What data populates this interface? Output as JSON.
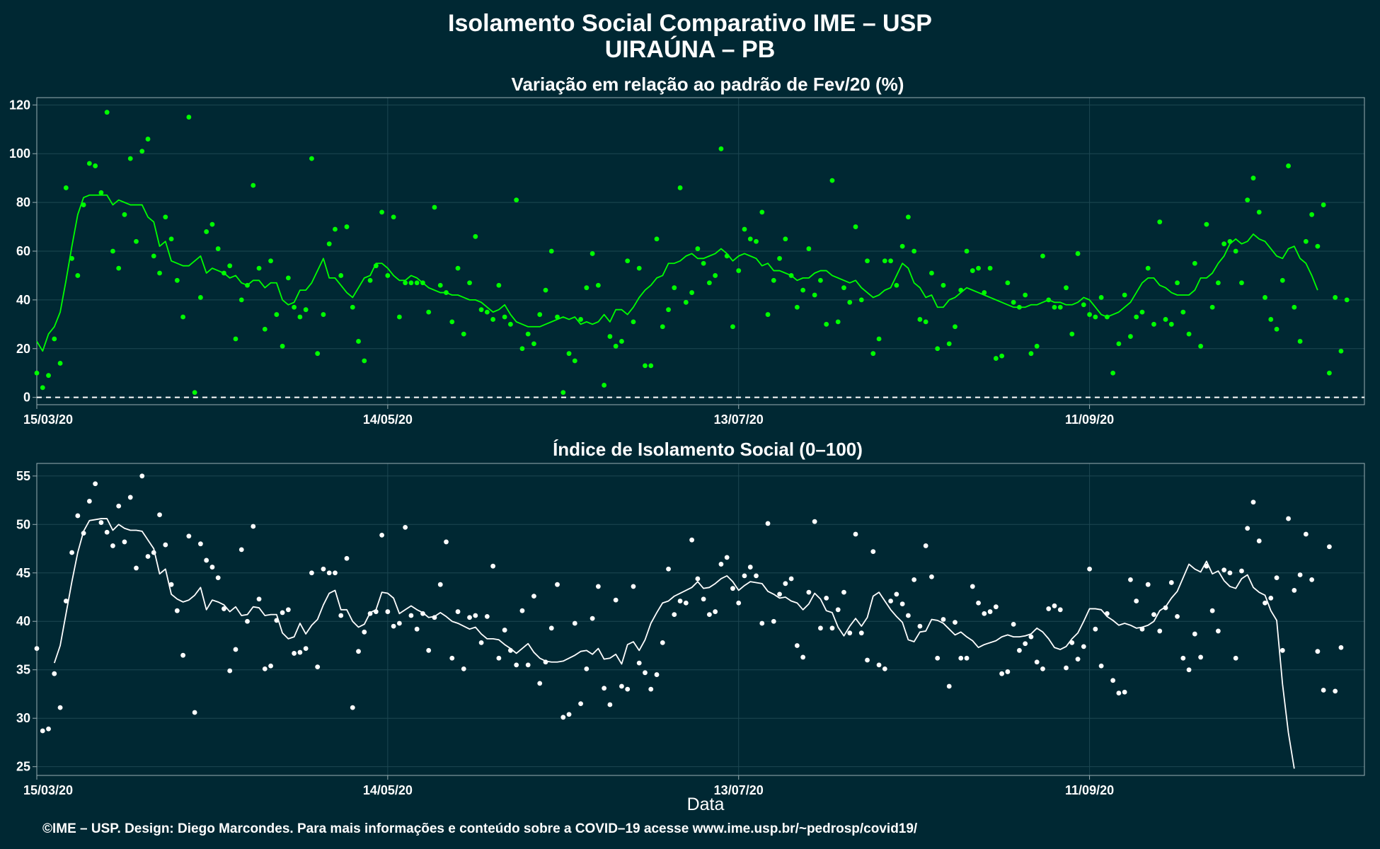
{
  "title": "Isolamento Social Comparativo IME – USP",
  "subtitle": "UIRAÚNA – PB",
  "xlabel": "Data",
  "footer": "©IME – USP. Design: Diego Marcondes. Para mais informações e conteúdo sobre a COVID–19 acesse www.ime.usp.br/~pedrosp/covid19/",
  "colors": {
    "background": "#002833",
    "grid": "#1d4752",
    "frame": "#9aaeb3",
    "series1": "#00ff00",
    "series2": "#ffffff"
  },
  "chart_data": [
    {
      "type": "scatter",
      "title": "Variação em relação ao padrão de Fev/20 (%)",
      "x_start": "15/03/20",
      "x_ticks": [
        {
          "label": "15/03/20",
          "day": 0
        },
        {
          "label": "14/05/20",
          "day": 60
        },
        {
          "label": "13/07/20",
          "day": 120
        },
        {
          "label": "11/09/20",
          "day": 180
        }
      ],
      "xlim_days": [
        0,
        227
      ],
      "ylim": [
        -3,
        123
      ],
      "y_ticks": [
        0,
        20,
        40,
        60,
        80,
        100,
        120
      ],
      "reference_line": 0,
      "grid": true,
      "points": [
        10,
        4,
        9,
        24,
        14,
        86,
        57,
        50,
        79,
        96,
        95,
        84,
        117,
        60,
        53,
        75,
        98,
        64,
        101,
        106,
        58,
        51,
        74,
        65,
        48,
        33,
        115,
        2,
        41,
        68,
        71,
        61,
        51,
        54,
        24,
        40,
        46,
        87,
        53,
        28,
        56,
        34,
        21,
        49,
        37,
        33,
        36,
        98,
        18,
        34,
        63,
        69,
        50,
        70,
        37,
        23,
        15,
        48,
        54,
        76,
        50,
        74,
        33,
        47,
        47,
        47,
        47,
        35,
        78,
        46,
        43,
        31,
        53,
        26,
        47,
        66,
        36,
        35,
        32,
        46,
        33,
        30,
        81,
        20,
        26,
        22,
        34,
        44,
        60,
        33,
        2,
        18,
        15,
        32,
        45,
        59,
        46,
        5,
        25,
        21,
        23,
        56,
        31,
        53,
        13,
        13,
        65,
        29,
        36,
        45,
        86,
        39,
        43,
        61,
        55,
        47,
        50,
        102,
        58,
        29,
        52,
        69,
        65,
        64,
        76,
        34,
        48,
        57,
        65,
        50,
        37,
        44,
        61,
        42,
        48,
        30,
        89,
        31,
        45,
        39,
        70,
        40,
        56,
        18,
        24,
        56,
        56,
        46,
        62,
        74,
        60,
        32,
        31,
        51,
        20,
        46,
        22,
        29,
        44,
        60,
        52,
        53,
        43,
        53,
        16,
        17,
        47,
        39,
        37,
        42,
        18,
        21,
        58,
        40,
        37,
        37,
        45,
        26,
        59,
        38,
        34,
        33,
        41,
        33,
        10,
        22,
        42,
        25,
        33,
        35,
        53,
        30,
        72,
        32,
        30,
        47,
        35,
        26,
        55,
        21,
        71,
        37,
        47,
        63,
        64,
        60,
        47,
        81,
        90,
        76,
        41,
        32,
        28,
        48,
        95,
        37,
        23,
        64,
        75,
        62,
        79,
        10,
        41,
        19,
        40
      ],
      "moving_average": [
        23,
        19,
        26,
        29,
        35,
        48,
        62,
        75,
        82,
        83,
        83,
        83,
        83,
        79,
        81,
        80,
        79,
        79,
        79,
        74,
        72,
        62,
        64,
        56,
        55,
        54,
        54,
        56,
        58,
        51,
        53,
        52,
        51,
        49,
        50,
        47,
        46,
        48,
        48,
        45,
        47,
        47,
        40,
        38,
        39,
        44,
        44,
        47,
        52,
        57,
        49,
        49,
        46,
        43,
        41,
        45,
        49,
        50,
        55,
        55,
        53,
        50,
        48,
        48,
        50,
        49,
        47,
        45,
        44,
        43,
        43,
        42,
        42,
        41,
        40,
        40,
        39,
        37,
        35,
        36,
        38,
        34,
        31,
        30,
        29,
        29,
        29,
        30,
        31,
        32,
        33,
        32,
        33,
        30,
        31,
        30,
        31,
        34,
        31,
        36,
        36,
        34,
        37,
        41,
        44,
        46,
        49,
        50,
        55,
        55,
        56,
        58,
        59,
        57,
        57,
        58,
        59,
        61,
        59,
        56,
        58,
        59,
        58,
        57,
        54,
        55,
        52,
        52,
        51,
        50,
        48,
        49,
        49,
        51,
        52,
        52,
        50,
        49,
        48,
        47,
        48,
        45,
        43,
        41,
        42,
        44,
        45,
        50,
        55,
        53,
        47,
        45,
        41,
        42,
        37,
        37,
        40,
        41,
        43,
        45,
        44,
        43,
        42,
        41,
        40,
        39,
        38,
        37,
        37,
        37,
        38,
        38,
        39,
        40,
        39,
        39,
        38,
        38,
        39,
        41,
        40,
        37,
        34,
        33,
        34,
        35,
        37,
        39,
        43,
        47,
        49,
        49,
        46,
        45,
        43,
        42,
        42,
        42,
        44,
        49,
        49,
        51,
        55,
        58,
        63,
        65,
        63,
        64,
        67,
        65,
        64,
        61,
        58,
        57,
        61,
        62,
        57,
        55,
        50,
        44
      ]
    },
    {
      "type": "scatter",
      "title": "Índice de Isolamento Social (0–100)",
      "x_start": "15/03/20",
      "x_ticks": [
        {
          "label": "15/03/20",
          "day": 0
        },
        {
          "label": "14/05/20",
          "day": 60
        },
        {
          "label": "13/07/20",
          "day": 120
        },
        {
          "label": "11/09/20",
          "day": 180
        }
      ],
      "xlim_days": [
        0,
        227
      ],
      "ylim": [
        24.1,
        56.3
      ],
      "y_ticks": [
        25,
        30,
        35,
        40,
        45,
        50,
        55
      ],
      "grid": true,
      "points": [
        37.2,
        28.7,
        28.9,
        34.6,
        31.1,
        42.1,
        47.1,
        50.9,
        49.1,
        52.4,
        54.2,
        50.2,
        49.2,
        47.8,
        51.9,
        48.2,
        52.8,
        45.5,
        55.0,
        46.7,
        47.1,
        51.0,
        47.9,
        43.8,
        41.1,
        36.5,
        48.8,
        30.6,
        48.0,
        46.3,
        45.6,
        44.5,
        41.3,
        34.9,
        37.1,
        47.4,
        40.0,
        49.8,
        42.3,
        35.1,
        35.4,
        40.1,
        40.9,
        41.2,
        36.7,
        36.8,
        37.2,
        45.0,
        35.3,
        45.4,
        45.0,
        45.0,
        40.6,
        46.5,
        31.1,
        36.9,
        38.9,
        40.8,
        41.0,
        48.9,
        41.0,
        39.5,
        39.8,
        49.7,
        40.6,
        39.2,
        40.8,
        37.0,
        40.4,
        43.8,
        48.2,
        36.2,
        41.0,
        35.1,
        40.4,
        40.6,
        37.8,
        40.5,
        45.7,
        36.2,
        39.1,
        37.0,
        35.5,
        41.1,
        35.5,
        42.6,
        33.6,
        35.8,
        39.3,
        43.8,
        30.1,
        30.4,
        39.8,
        31.5,
        35.1,
        40.3,
        43.6,
        33.1,
        31.4,
        42.2,
        33.3,
        33.0,
        43.6,
        35.7,
        34.7,
        33.0,
        34.5,
        37.8,
        45.4,
        40.7,
        42.1,
        41.9,
        48.4,
        44.4,
        42.3,
        40.7,
        41.0,
        45.9,
        46.6,
        43.4,
        41.9,
        44.7,
        45.6,
        44.7,
        39.8,
        50.1,
        40.0,
        42.8,
        43.9,
        44.4,
        37.5,
        36.3,
        43.0,
        50.3,
        39.3,
        42.4,
        39.3,
        41.2,
        43.0,
        38.8,
        49.0,
        38.8,
        36.0,
        47.2,
        35.5,
        35.1,
        42.1,
        42.8,
        41.8,
        40.6,
        44.3,
        39.5,
        47.8,
        44.6,
        36.2,
        40.2,
        33.3,
        39.9,
        36.2,
        36.2,
        43.6,
        41.9,
        40.8,
        41.0,
        41.5,
        34.6,
        34.8,
        39.7,
        37.0,
        37.7,
        38.4,
        35.8,
        35.1,
        41.3,
        41.6,
        41.2,
        35.2,
        37.8,
        36.1,
        37.4,
        45.4,
        39.2,
        35.4,
        40.8,
        33.9,
        32.6,
        32.7,
        44.3,
        42.1,
        39.2,
        43.8,
        40.7,
        39.0,
        41.4,
        44.0,
        40.5,
        36.2,
        35.0,
        38.7,
        36.3,
        45.7,
        41.1,
        39.0,
        45.3,
        45.0,
        36.2,
        45.2,
        49.6,
        52.3,
        48.3,
        41.9,
        42.4,
        44.5,
        37.0,
        50.6,
        43.2,
        44.8,
        49.0,
        44.3,
        36.9,
        32.9,
        47.7,
        32.8,
        37.3
      ],
      "moving_average": [
        null,
        null,
        null,
        35.7,
        37.5,
        40.8,
        44.1,
        47.1,
        49.3,
        50.4,
        50.5,
        50.6,
        50.6,
        49.4,
        50.0,
        49.6,
        49.4,
        49.4,
        49.3,
        48.4,
        47.5,
        44.9,
        45.4,
        42.8,
        42.3,
        42.0,
        42.2,
        42.7,
        43.5,
        41.2,
        42.2,
        42.0,
        41.7,
        41.0,
        41.5,
        40.6,
        40.7,
        41.5,
        41.4,
        40.6,
        40.7,
        40.7,
        38.8,
        38.2,
        38.4,
        39.8,
        38.7,
        39.6,
        40.2,
        41.7,
        42.9,
        43.2,
        41.2,
        41.2,
        40.0,
        39.4,
        39.7,
        40.9,
        41.2,
        43.0,
        42.9,
        42.4,
        40.8,
        41.2,
        41.6,
        41.2,
        40.9,
        40.4,
        40.5,
        40.9,
        40.5,
        40.0,
        39.8,
        39.5,
        39.2,
        39.4,
        38.7,
        38.2,
        38.2,
        38.1,
        37.6,
        37.2,
        36.7,
        37.2,
        37.7,
        36.8,
        36.2,
        35.9,
        35.8,
        35.8,
        35.9,
        36.2,
        36.5,
        36.9,
        37.0,
        36.6,
        37.2,
        36.1,
        36.2,
        36.6,
        35.6,
        37.6,
        37.9,
        37.0,
        38.1,
        39.8,
        40.9,
        41.9,
        42.1,
        42.6,
        42.9,
        43.2,
        43.5,
        44.1,
        43.4,
        43.5,
        43.9,
        44.4,
        44.7,
        44.1,
        43.2,
        43.7,
        44.1,
        44.0,
        43.9,
        43.1,
        42.8,
        42.4,
        42.5,
        42.1,
        41.9,
        41.2,
        41.8,
        42.9,
        42.3,
        41.1,
        40.9,
        39.4,
        38.5,
        39.5,
        40.3,
        39.5,
        40.4,
        42.6,
        43.0,
        42.1,
        41.2,
        40.5,
        39.9,
        38.1,
        37.9,
        38.9,
        39.0,
        40.2,
        40.1,
        39.8,
        39.2,
        38.6,
        38.9,
        38.4,
        38.0,
        37.3,
        37.6,
        37.8,
        38.0,
        38.4,
        38.6,
        38.4,
        38.4,
        38.5,
        38.7,
        39.3,
        38.9,
        38.2,
        37.3,
        37.1,
        37.4,
        38.2,
        38.8,
        40.0,
        41.3,
        41.3,
        41.2,
        40.5,
        40.1,
        39.6,
        39.8,
        39.6,
        39.3,
        39.4,
        39.6,
        40.0,
        41.1,
        41.5,
        42.4,
        43.1,
        44.5,
        45.9,
        45.4,
        45.1,
        46.2,
        44.9,
        45.2,
        44.2,
        43.6,
        43.4,
        44.4,
        44.8,
        43.5,
        43.0,
        42.7,
        41.1,
        40.1,
        33.5,
        28.5,
        24.8
      ]
    }
  ]
}
